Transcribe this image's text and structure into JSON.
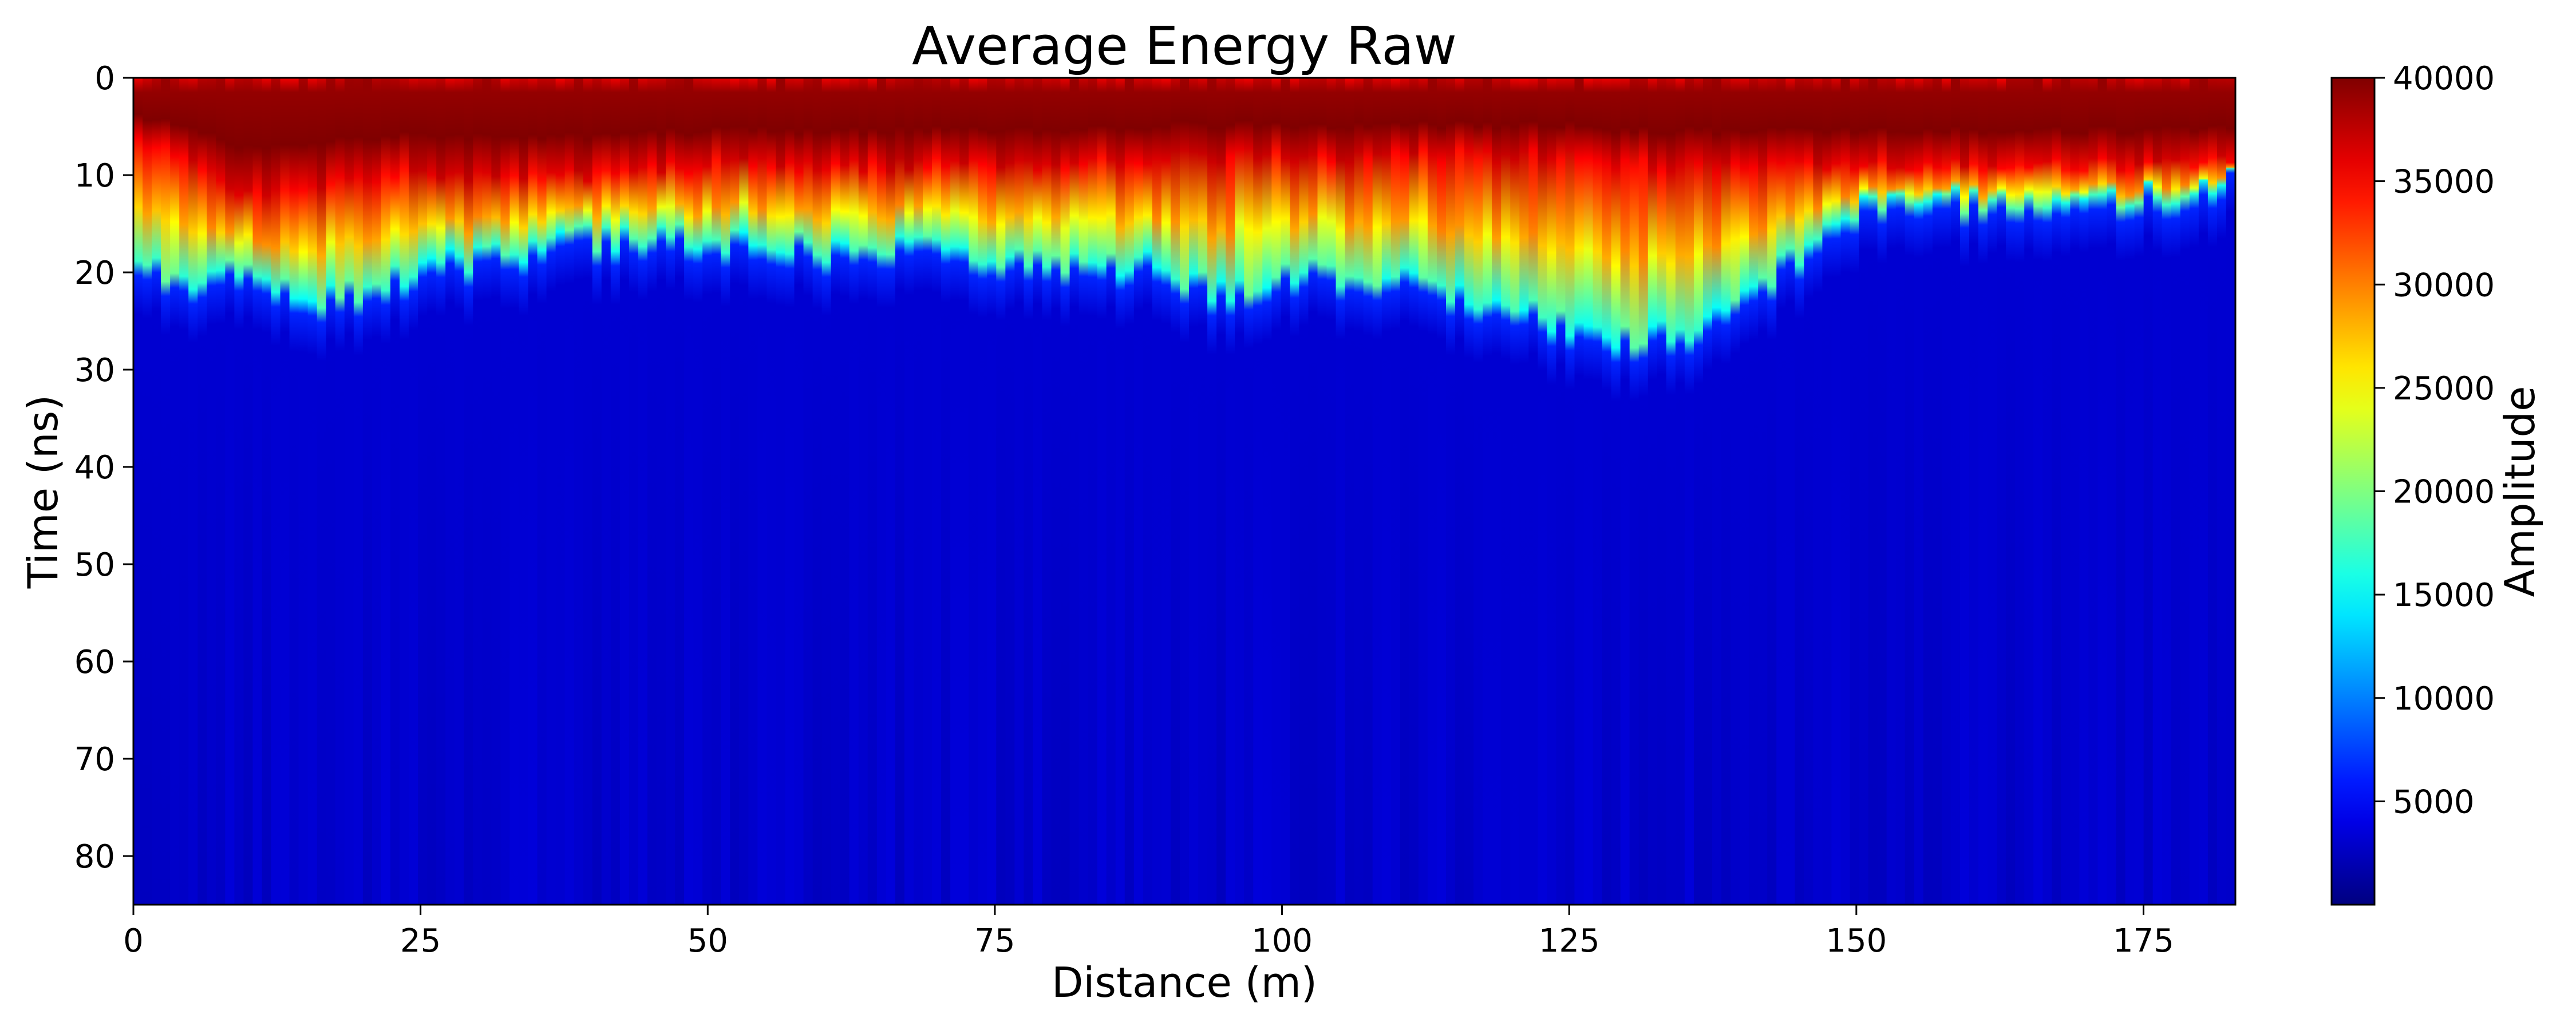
{
  "chart_data": {
    "type": "heatmap",
    "title": "Average Energy Raw",
    "xlabel": "Distance (m)",
    "ylabel": "Time (ns)",
    "colorbar_label": "Amplitude",
    "colormap": "jet",
    "xlim": [
      0,
      183
    ],
    "ylim": [
      85,
      0
    ],
    "clim": [
      0,
      40000
    ],
    "x_ticks": [
      0,
      25,
      50,
      75,
      100,
      125,
      150,
      175
    ],
    "x_tick_labels": [
      "0",
      "25",
      "50",
      "75",
      "100",
      "125",
      "150",
      "175"
    ],
    "y_ticks": [
      0,
      10,
      20,
      30,
      40,
      50,
      60,
      70,
      80
    ],
    "y_tick_labels": [
      "0",
      "10",
      "20",
      "30",
      "40",
      "50",
      "60",
      "70",
      "80"
    ],
    "colorbar_ticks": [
      5000,
      10000,
      15000,
      20000,
      25000,
      30000,
      35000,
      40000
    ],
    "colorbar_tick_labels": [
      "5000",
      "10000",
      "15000",
      "20000",
      "25000",
      "30000",
      "35000",
      "40000"
    ],
    "grid": false,
    "summary_profile": {
      "distance_m": [
        0,
        5,
        10,
        15,
        20,
        25,
        30,
        40,
        50,
        60,
        70,
        80,
        90,
        95,
        100,
        105,
        110,
        115,
        120,
        125,
        130,
        135,
        140,
        150,
        160,
        170,
        180,
        183
      ],
      "high_amplitude_bottom_ns": [
        6,
        9,
        12,
        12,
        10,
        10,
        10,
        10,
        9,
        9,
        9,
        9,
        8,
        8,
        8,
        8,
        8,
        8,
        8,
        8,
        9,
        9,
        9,
        9,
        9,
        9,
        9,
        8
      ],
      "reflector_bottom_ns": [
        20,
        22,
        21,
        25,
        23,
        21,
        20,
        18,
        18,
        19,
        19,
        20,
        21,
        24,
        21,
        22,
        22,
        24,
        24,
        27,
        28,
        28,
        24,
        15,
        14,
        14,
        13,
        11
      ]
    }
  }
}
